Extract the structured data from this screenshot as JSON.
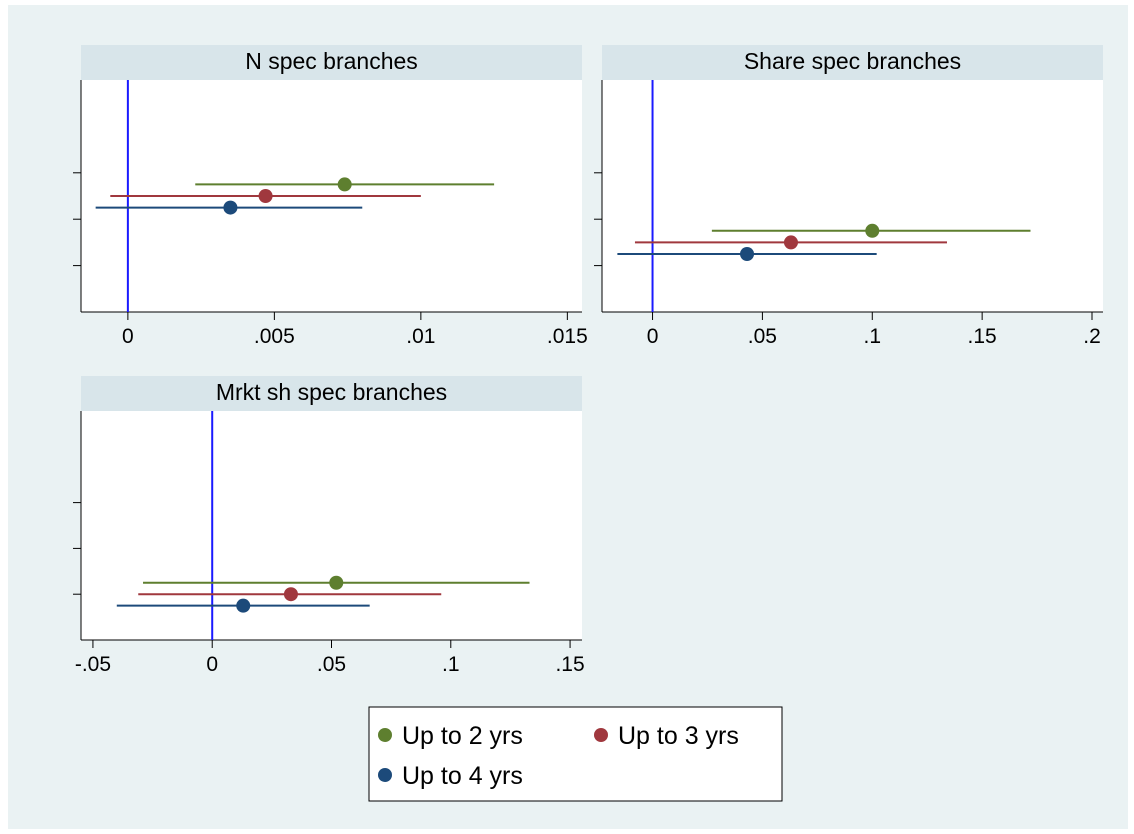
{
  "series_colors": {
    "Up to 2 yrs": "#5e7f2f",
    "Up to 3 yrs": "#a0383e",
    "Up to 4 yrs": "#1c4a7a"
  },
  "zero_line_color": "#1a1aff",
  "chart_data": [
    {
      "type": "scatter",
      "subtype": "coefficient-plot",
      "title": "N spec branches",
      "xlim": [
        -0.0016,
        0.0155
      ],
      "xticks": [
        0,
        0.005,
        0.01,
        0.015
      ],
      "xtick_labels": [
        "0",
        ".005",
        ".01",
        ".015"
      ],
      "y_rows": 5,
      "y_ticks": [
        2,
        3,
        4
      ],
      "reference_line_x": 0,
      "series": [
        {
          "name": "Up to 2 yrs",
          "row": 2.25,
          "estimate": 0.0074,
          "ci": [
            0.0023,
            0.0125
          ]
        },
        {
          "name": "Up to 3 yrs",
          "row": 2.5,
          "estimate": 0.0047,
          "ci": [
            -0.0006,
            0.01
          ]
        },
        {
          "name": "Up to 4 yrs",
          "row": 2.75,
          "estimate": 0.0035,
          "ci": [
            -0.0011,
            0.008
          ]
        }
      ]
    },
    {
      "type": "scatter",
      "subtype": "coefficient-plot",
      "title": "Share spec branches",
      "xlim": [
        -0.023,
        0.205
      ],
      "xticks": [
        0,
        0.05,
        0.1,
        0.15,
        0.2
      ],
      "xtick_labels": [
        "0",
        ".05",
        ".1",
        ".15",
        ".2"
      ],
      "y_rows": 5,
      "y_ticks": [
        2,
        3,
        4
      ],
      "reference_line_x": 0,
      "series": [
        {
          "name": "Up to 2 yrs",
          "row": 3.25,
          "estimate": 0.1,
          "ci": [
            0.027,
            0.172
          ]
        },
        {
          "name": "Up to 3 yrs",
          "row": 3.5,
          "estimate": 0.063,
          "ci": [
            -0.008,
            0.134
          ]
        },
        {
          "name": "Up to 4 yrs",
          "row": 3.75,
          "estimate": 0.043,
          "ci": [
            -0.016,
            0.102
          ]
        }
      ]
    },
    {
      "type": "scatter",
      "subtype": "coefficient-plot",
      "title": "Mrkt sh spec branches",
      "xlim": [
        -0.055,
        0.155
      ],
      "xticks": [
        -0.05,
        0,
        0.05,
        0.1,
        0.15
      ],
      "xtick_labels": [
        "-.05",
        "0",
        ".05",
        ".1",
        ".15"
      ],
      "y_rows": 5,
      "y_ticks": [
        2,
        3,
        4
      ],
      "reference_line_x": 0,
      "series": [
        {
          "name": "Up to 2 yrs",
          "row": 3.75,
          "estimate": 0.052,
          "ci": [
            -0.029,
            0.133
          ]
        },
        {
          "name": "Up to 3 yrs",
          "row": 4.0,
          "estimate": 0.033,
          "ci": [
            -0.031,
            0.096
          ]
        },
        {
          "name": "Up to 4 yrs",
          "row": 4.25,
          "estimate": 0.013,
          "ci": [
            -0.04,
            0.066
          ]
        }
      ]
    }
  ],
  "legend": {
    "entries": [
      "Up to 2 yrs",
      "Up to 3 yrs",
      "Up to 4 yrs"
    ],
    "position": "bottom"
  }
}
